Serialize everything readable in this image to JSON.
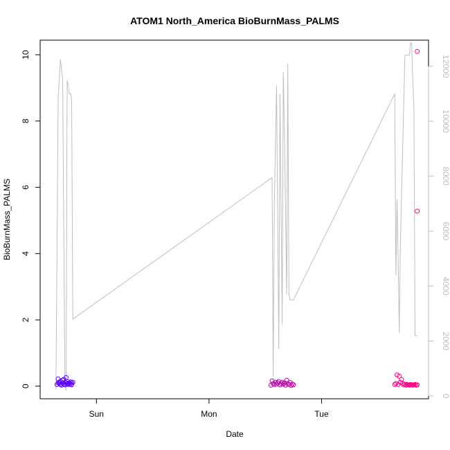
{
  "chart_data": {
    "type": "scatter",
    "title": "ATOM1 North_America BioBurnMass_PALMS",
    "xlabel": "Date",
    "ylabel": "BioBurnMass_PALMS",
    "x_ticks": [
      {
        "label": "Sun",
        "x": 1.0
      },
      {
        "label": "Mon",
        "x": 2.0
      },
      {
        "label": "Tue",
        "x": 3.0
      }
    ],
    "xlim": [
      0.5,
      3.95
    ],
    "ylim": [
      -0.38,
      10.44
    ],
    "y_ticks": [
      0,
      2,
      4,
      6,
      8,
      10
    ],
    "y2lim": [
      -100,
      12950
    ],
    "y2_ticks": [
      0,
      2000,
      4000,
      6000,
      8000,
      10000,
      12000
    ],
    "colors": {
      "axis": "#000000",
      "secondary_axis": "#bebebe",
      "altitude_line": "#bebebe",
      "gradient_start": "#5a00ff",
      "gradient_end": "#ff0080"
    },
    "series": [
      {
        "kind": "points",
        "axis": "left",
        "x": [
          0.65,
          0.66,
          0.66,
          0.67,
          0.67,
          0.68,
          0.68,
          0.69,
          0.7,
          0.7,
          0.71,
          0.71,
          0.72,
          0.72,
          0.73,
          0.73,
          0.74,
          0.74,
          0.75,
          0.75,
          0.76,
          0.77,
          0.77,
          0.78,
          0.78,
          0.79,
          2.55,
          2.56,
          2.57,
          2.58,
          2.59,
          2.6,
          2.61,
          2.62,
          2.63,
          2.64,
          2.65,
          2.66,
          2.67,
          2.68,
          2.69,
          2.7,
          2.71,
          2.72,
          2.73,
          2.74,
          2.75,
          3.65,
          3.66,
          3.67,
          3.68,
          3.69,
          3.7,
          3.71,
          3.72,
          3.73,
          3.74,
          3.75,
          3.76,
          3.77,
          3.78,
          3.79,
          3.8,
          3.81,
          3.82,
          3.83,
          3.84,
          3.85,
          3.85,
          3.85
        ],
        "y": [
          0.05,
          0.22,
          0.1,
          0.08,
          0.12,
          0.05,
          0.15,
          0.03,
          0.18,
          0.1,
          0.06,
          0.2,
          0.12,
          0.04,
          0.26,
          0.1,
          0.06,
          0.14,
          0.08,
          0.05,
          0.1,
          0.06,
          0.13,
          0.04,
          0.1,
          0.12,
          0.03,
          0.16,
          0.08,
          0.05,
          0.12,
          0.06,
          0.1,
          0.14,
          0.04,
          0.08,
          0.12,
          0.06,
          0.1,
          0.03,
          0.18,
          0.08,
          0.05,
          0.12,
          0.02,
          0.06,
          0.04,
          0.05,
          0.08,
          0.34,
          0.05,
          0.3,
          0.12,
          0.2,
          0.08,
          0.04,
          0.06,
          0.03,
          0.05,
          0.04,
          0.03,
          0.05,
          0.04,
          0.03,
          0.04,
          0.05,
          0.03,
          0.04,
          10.1,
          5.28
        ]
      },
      {
        "kind": "line",
        "axis": "right",
        "x": [
          0.64,
          0.66,
          0.68,
          0.7,
          0.72,
          0.73,
          0.74,
          0.76,
          0.77,
          0.78,
          0.79,
          2.56,
          2.57,
          2.58,
          2.6,
          2.62,
          2.63,
          2.65,
          2.66,
          2.67,
          2.69,
          2.7,
          2.71,
          2.72,
          2.73,
          2.74,
          2.75,
          3.65,
          3.66,
          3.67,
          3.68,
          3.69,
          3.7,
          3.72,
          3.74,
          3.75,
          3.76,
          3.78,
          3.79,
          3.8,
          3.81,
          3.82,
          3.83,
          3.84,
          3.85
        ],
        "y": [
          250,
          10800,
          12250,
          11500,
          480,
          200,
          11500,
          11000,
          11000,
          10800,
          2800,
          7950,
          700,
          6900,
          11300,
          1700,
          11000,
          2600,
          11800,
          9500,
          3700,
          12100,
          3700,
          3500,
          3500,
          3500,
          3500,
          11000,
          4400,
          7150,
          5000,
          2300,
          5500,
          9000,
          12400,
          12400,
          12400,
          12400,
          12850,
          12850,
          11500,
          10500,
          2200,
          2200,
          2200
        ]
      }
    ]
  }
}
